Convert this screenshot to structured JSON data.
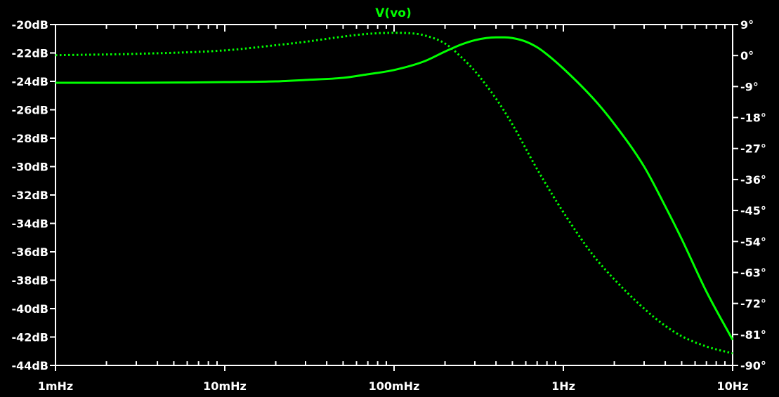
{
  "chart_data": {
    "type": "line",
    "title": "V(vo)",
    "x_scale": "log",
    "x_range": [
      "1mHz",
      "10Hz"
    ],
    "x_ticks": [
      {
        "label": "1mHz",
        "value": 0.001
      },
      {
        "label": "10mHz",
        "value": 0.01
      },
      {
        "label": "100mHz",
        "value": 0.1
      },
      {
        "label": "1Hz",
        "value": 1
      },
      {
        "label": "10Hz",
        "value": 10
      }
    ],
    "y_left_range": [
      -44,
      -20
    ],
    "y_left_ticks": [
      "-20dB",
      "-22dB",
      "-24dB",
      "-26dB",
      "-28dB",
      "-30dB",
      "-32dB",
      "-34dB",
      "-36dB",
      "-38dB",
      "-40dB",
      "-42dB",
      "-44dB"
    ],
    "y_right_range": [
      -90,
      9
    ],
    "y_right_ticks": [
      "9°",
      "0°",
      "-9°",
      "-18°",
      "-27°",
      "-36°",
      "-45°",
      "-54°",
      "-63°",
      "-72°",
      "-81°",
      "-90°"
    ],
    "grid": false,
    "colors": {
      "background": "#000000",
      "frame": "#ffffff",
      "trace": "#00ff00",
      "title": "#00ff00"
    },
    "series": [
      {
        "quantity": "magnitude",
        "axis": "left",
        "style": "solid",
        "x": [
          0.001,
          0.003,
          0.01,
          0.02,
          0.03,
          0.05,
          0.07,
          0.1,
          0.15,
          0.2,
          0.25,
          0.3,
          0.35,
          0.4,
          0.45,
          0.5,
          0.6,
          0.7,
          0.8,
          1.0,
          1.5,
          2,
          3,
          4,
          5,
          7,
          10
        ],
        "y": [
          -24.1,
          -24.1,
          -24.05,
          -24.0,
          -23.9,
          -23.75,
          -23.5,
          -23.2,
          -22.6,
          -21.9,
          -21.4,
          -21.1,
          -20.95,
          -20.9,
          -20.9,
          -20.95,
          -21.2,
          -21.6,
          -22.1,
          -23.1,
          -25.2,
          -27.0,
          -30.0,
          -32.8,
          -35.1,
          -38.8,
          -42.2
        ]
      },
      {
        "quantity": "phase",
        "axis": "right",
        "style": "dotted",
        "x": [
          0.001,
          0.003,
          0.01,
          0.02,
          0.03,
          0.05,
          0.07,
          0.1,
          0.13,
          0.15,
          0.2,
          0.25,
          0.3,
          0.4,
          0.5,
          0.7,
          1.0,
          1.5,
          2,
          3,
          4,
          5,
          7,
          10
        ],
        "y": [
          0.1,
          0.5,
          1.5,
          3.0,
          4.0,
          5.5,
          6.3,
          6.6,
          6.4,
          5.9,
          3.5,
          -0.5,
          -4.5,
          -12.5,
          -20.0,
          -33.0,
          -45.5,
          -58.0,
          -65.0,
          -73.5,
          -78.5,
          -81.5,
          -84.5,
          -86.5
        ]
      }
    ]
  }
}
